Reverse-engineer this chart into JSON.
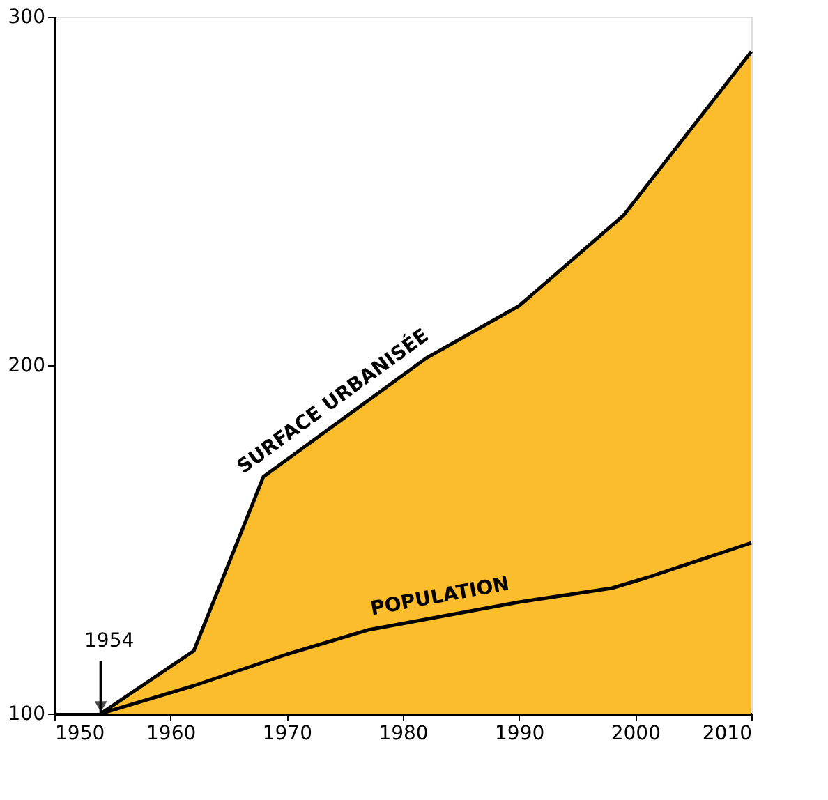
{
  "chart_data": {
    "type": "area",
    "xlim": [
      1950,
      2010
    ],
    "xticks": [
      1950,
      1960,
      1970,
      1980,
      1990,
      2000,
      2010
    ],
    "ylim": [
      100,
      300
    ],
    "yticks": [
      100,
      200,
      300
    ],
    "series": [
      {
        "name": "SURFACE URBANISÉE",
        "color": "#fbbd2b",
        "x": [
          1954,
          1962,
          1968,
          1982,
          1990,
          1999,
          2010
        ],
        "values": [
          100,
          118,
          168,
          202,
          217,
          243,
          290
        ]
      },
      {
        "name": "POPULATION",
        "type": "line",
        "color": "#000000",
        "x": [
          1954,
          1962,
          1970,
          1977,
          1990,
          1998,
          2001,
          2010
        ],
        "values": [
          100,
          108,
          117,
          124,
          132,
          136,
          139,
          149
        ]
      }
    ],
    "annotations": [
      {
        "text": "1954",
        "x": 1954,
        "y": 100
      }
    ]
  }
}
